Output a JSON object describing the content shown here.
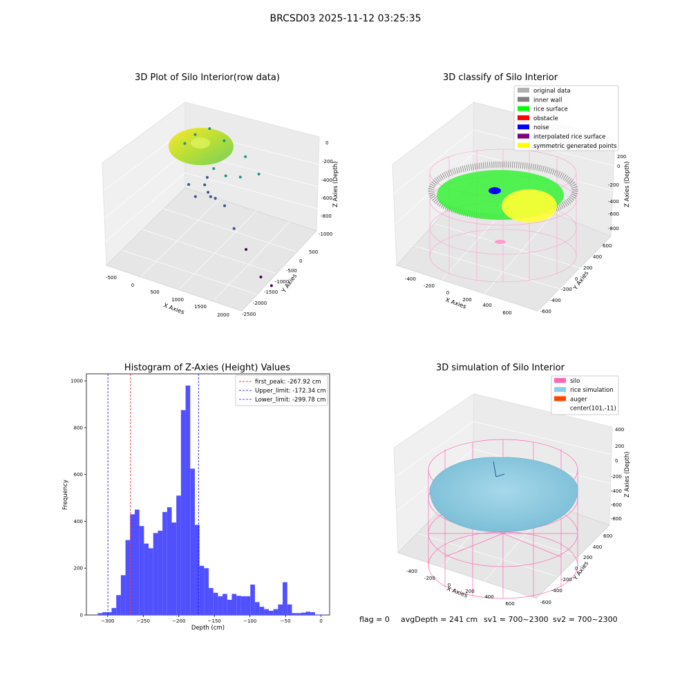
{
  "figure_title": "BRCSD03 2025-11-12 03:25:35",
  "status_line": {
    "flag": "flag = 0",
    "avg_depth": "avgDepth = 241 cm",
    "sv1": "sv1 = 700~2300",
    "sv2": "sv2 = 700~2300"
  },
  "colors": {
    "histogram_bars": "#5050ff",
    "first_peak_line": "#ff0000",
    "limit_lines": "#0000ff",
    "silo": "#ff69b4",
    "rice_simulation": "#87ceeb",
    "auger": "#ff4500",
    "viridis": [
      "#440154",
      "#3b528b",
      "#21918c",
      "#5ec962",
      "#fde725"
    ]
  },
  "chart_data": [
    {
      "type": "scatter",
      "projection": "3d",
      "title": "3D Plot of Silo Interior(row data)",
      "xlabel": "X Axies",
      "ylabel": "Y Axies",
      "zlabel": "Z Axies (Depth)",
      "x_ticks": [
        "-500",
        "0",
        "500",
        "1000",
        "1500",
        "2000"
      ],
      "y_ticks": [
        "500",
        "0",
        "-500",
        "-1000",
        "-1500",
        "-2000",
        "-2500"
      ],
      "z_ticks": [
        "0",
        "-200",
        "-400",
        "-600",
        "-800",
        "-1000"
      ],
      "xlim": [
        -600,
        2100
      ],
      "ylim": [
        -2600,
        700
      ],
      "zlim": [
        -1000,
        50
      ],
      "colormap": "viridis",
      "main_cloud": "dense ring of points near z -150 to -250",
      "outlier_points": [
        {
          "x": 200,
          "y": -300,
          "z": -420
        },
        {
          "x": 500,
          "y": -200,
          "z": -380
        },
        {
          "x": 900,
          "y": -100,
          "z": -360
        },
        {
          "x": 1200,
          "y": -300,
          "z": -400
        },
        {
          "x": 1600,
          "y": -700,
          "z": -420
        },
        {
          "x": 1800,
          "y": -1100,
          "z": -450
        },
        {
          "x": 1400,
          "y": -900,
          "z": -520
        },
        {
          "x": 1100,
          "y": -700,
          "z": -560
        },
        {
          "x": 900,
          "y": -400,
          "z": -580
        },
        {
          "x": 700,
          "y": -500,
          "z": -620
        },
        {
          "x": 600,
          "y": -600,
          "z": -650
        },
        {
          "x": 650,
          "y": -700,
          "z": -680
        },
        {
          "x": 700,
          "y": -750,
          "z": -700
        },
        {
          "x": 800,
          "y": -800,
          "z": -700
        },
        {
          "x": 300,
          "y": -300,
          "z": -720
        },
        {
          "x": 1000,
          "y": -900,
          "z": -730
        },
        {
          "x": 400,
          "y": -500,
          "z": -760
        },
        {
          "x": 1100,
          "y": -1300,
          "z": -800
        },
        {
          "x": 1300,
          "y": -1600,
          "z": -880
        },
        {
          "x": 1500,
          "y": -2100,
          "z": -960
        },
        {
          "x": 1700,
          "y": -2300,
          "z": -975
        }
      ]
    },
    {
      "type": "scatter",
      "projection": "3d",
      "title": "3D classify of Silo Interior",
      "xlabel": "X Axies",
      "ylabel": "Y Axies",
      "zlabel": "Z Axies (Depth)",
      "x_ticks": [
        "-400",
        "-200",
        "0",
        "200",
        "400",
        "600"
      ],
      "y_ticks": [
        "600",
        "400",
        "200",
        "0",
        "-200",
        "-400",
        "-600"
      ],
      "z_ticks": [
        "200",
        "0",
        "-200",
        "-400",
        "-600",
        "-800"
      ],
      "xlim": [
        -550,
        700
      ],
      "ylim": [
        -650,
        650
      ],
      "zlim": [
        -900,
        300
      ],
      "legend": [
        {
          "label": "original data",
          "color": "#b0b0b0"
        },
        {
          "label": "inner wall",
          "color": "#808080"
        },
        {
          "label": "rice surface",
          "color": "#00ff00"
        },
        {
          "label": "obstacle",
          "color": "#ff0000"
        },
        {
          "label": "noise",
          "color": "#0000ff"
        },
        {
          "label": "interpolated rice surface",
          "color": "#800080"
        },
        {
          "label": "symmetric generated points",
          "color": "#ffff00"
        }
      ],
      "legend_position": "upper right"
    },
    {
      "type": "bar",
      "title": "Histogram of Z-Axies (Height) Values",
      "xlabel": "Depth (cm)",
      "ylabel": "Frequency",
      "xlim": [
        -330,
        12
      ],
      "ylim": [
        0,
        1030
      ],
      "x_ticks": [
        -300,
        -250,
        -200,
        -150,
        -100,
        -50,
        0
      ],
      "y_ticks": [
        0,
        200,
        400,
        600,
        800,
        1000
      ],
      "bin_width": 6.5,
      "bins": [
        {
          "x0": -314,
          "value": 8
        },
        {
          "x0": -307.5,
          "value": 12
        },
        {
          "x0": -301,
          "value": 12
        },
        {
          "x0": -294.5,
          "value": 30
        },
        {
          "x0": -288,
          "value": 85
        },
        {
          "x0": -281.5,
          "value": 170
        },
        {
          "x0": -275,
          "value": 320
        },
        {
          "x0": -268.5,
          "value": 430
        },
        {
          "x0": -262,
          "value": 450
        },
        {
          "x0": -255.5,
          "value": 380
        },
        {
          "x0": -249,
          "value": 305
        },
        {
          "x0": -242.5,
          "value": 285
        },
        {
          "x0": -236,
          "value": 350
        },
        {
          "x0": -229.5,
          "value": 360
        },
        {
          "x0": -223,
          "value": 440
        },
        {
          "x0": -216.5,
          "value": 460
        },
        {
          "x0": -210,
          "value": 395
        },
        {
          "x0": -203.5,
          "value": 510
        },
        {
          "x0": -197,
          "value": 875
        },
        {
          "x0": -190.5,
          "value": 980
        },
        {
          "x0": -184,
          "value": 625
        },
        {
          "x0": -177.5,
          "value": 385
        },
        {
          "x0": -171,
          "value": 210
        },
        {
          "x0": -164.5,
          "value": 200
        },
        {
          "x0": -158,
          "value": 115
        },
        {
          "x0": -151.5,
          "value": 95
        },
        {
          "x0": -145,
          "value": 80
        },
        {
          "x0": -138.5,
          "value": 90
        },
        {
          "x0": -132,
          "value": 65
        },
        {
          "x0": -125.5,
          "value": 90
        },
        {
          "x0": -119,
          "value": 82
        },
        {
          "x0": -112.5,
          "value": 80
        },
        {
          "x0": -106,
          "value": 80
        },
        {
          "x0": -99.5,
          "value": 130
        },
        {
          "x0": -93,
          "value": 55
        },
        {
          "x0": -86.5,
          "value": 35
        },
        {
          "x0": -80,
          "value": 25
        },
        {
          "x0": -73.5,
          "value": 18
        },
        {
          "x0": -67,
          "value": 25
        },
        {
          "x0": -60.5,
          "value": 45
        },
        {
          "x0": -54,
          "value": 140
        },
        {
          "x0": -47.5,
          "value": 45
        },
        {
          "x0": -41,
          "value": 8
        },
        {
          "x0": -34.5,
          "value": 8
        },
        {
          "x0": -28,
          "value": 10
        },
        {
          "x0": -21.5,
          "value": 14
        },
        {
          "x0": -15,
          "value": 12
        },
        {
          "x0": -8.5,
          "value": 2
        },
        {
          "x0": -2,
          "value": 2
        }
      ],
      "vlines": [
        {
          "x": -267.92,
          "label": "first_peak: -267.92 cm",
          "color": "#ff0000"
        },
        {
          "x": -172.34,
          "label": "Upper_limit: -172.34 cm",
          "color": "#0000ff"
        },
        {
          "x": -299.78,
          "label": "Lower_limit: -299.78 cm",
          "color": "#0000ff"
        }
      ],
      "legend_position": "upper right",
      "grid": false
    },
    {
      "type": "surface",
      "projection": "3d",
      "title": "3D simulation of Silo Interior",
      "xlabel": "X Axies",
      "ylabel": "Y Axies",
      "zlabel": "Z Axies (Depth)",
      "x_ticks": [
        "-400",
        "-200",
        "0",
        "200",
        "400",
        "600"
      ],
      "y_ticks": [
        "600",
        "400",
        "200",
        "0",
        "-200",
        "-400",
        "-600"
      ],
      "z_ticks": [
        "400",
        "200",
        "0",
        "-200",
        "-400",
        "-600",
        "-800"
      ],
      "xlim": [
        -550,
        700
      ],
      "ylim": [
        -650,
        650
      ],
      "zlim": [
        -900,
        450
      ],
      "legend": [
        {
          "label": "silo",
          "color": "#ff69b4"
        },
        {
          "label": "rice simulation",
          "color": "#87ceeb"
        },
        {
          "label": "auger",
          "color": "#ff4500"
        },
        {
          "label": "center(101,-11)",
          "color": ""
        }
      ],
      "legend_position": "upper right"
    }
  ]
}
